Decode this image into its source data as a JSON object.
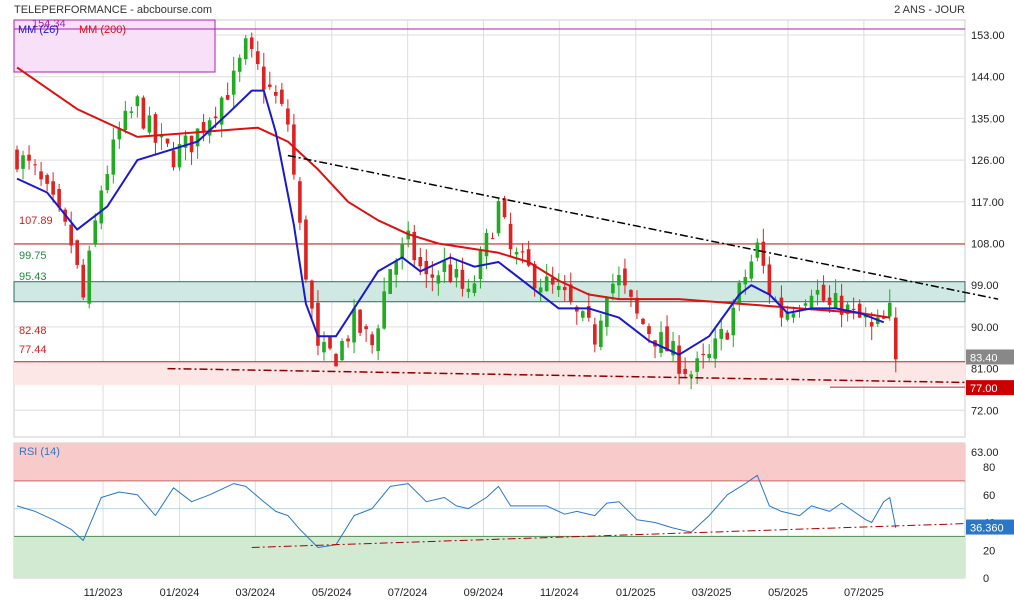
{
  "header": {
    "left_title": "TELEPERFORMANCE - abcbourse.com",
    "right_title": "2 ANS - JOUR"
  },
  "legend": {
    "mm26_label": "MM (26)",
    "mm200_label": "MM (200)",
    "rsi_label": "RSI (14)"
  },
  "colors": {
    "up": "#22aa22",
    "down": "#dd2222",
    "mm26": "#1a1acc",
    "mm200": "#dd1111",
    "grid": "#dddddd",
    "zone_green": "#cfe9e2",
    "zone_pink": "#fde6e6",
    "rsi_high": "#f9caca",
    "rsi_low": "#d2e9d2",
    "last_price_bg": "#888888",
    "target_bg": "#cc0000",
    "rsi_value_bg": "#2a77c9"
  },
  "chart_data": [
    {
      "type": "candlestick",
      "title": "TELEPERFORMANCE",
      "y_axis_side": "right",
      "ylim": [
        57,
        155
      ],
      "y_ticks": [
        63,
        72,
        81,
        90,
        99,
        108,
        117,
        126,
        135,
        144,
        153
      ],
      "y_tick_labels": [
        "63.00",
        "72.00",
        "81.00",
        "90.00",
        "99.00",
        "108.00",
        "117.00",
        "126.00",
        "135.00",
        "144.00",
        "153.00"
      ],
      "x_labels": [
        "11/2023",
        "01/2024",
        "03/2024",
        "05/2024",
        "07/2024",
        "09/2024",
        "11/2024",
        "01/2025",
        "03/2025",
        "05/2025",
        "07/2025"
      ],
      "last_price": 83.4,
      "last_price_label": "83.40",
      "target_price": 77.0,
      "target_label": "77.00",
      "horizontal_levels": [
        {
          "value": 107.89,
          "label": "107.89"
        },
        {
          "value": 99.75,
          "label": "99.75"
        },
        {
          "value": 95.43,
          "label": "95.43"
        },
        {
          "value": 82.48,
          "label": "82.48"
        },
        {
          "value": 77.44,
          "label": "77.44"
        }
      ],
      "box_level_label": "154.34",
      "price_path": [
        [
          0,
          127
        ],
        [
          3,
          123
        ],
        [
          6,
          116
        ],
        [
          9,
          108
        ],
        [
          11,
          96
        ],
        [
          14,
          120
        ],
        [
          17,
          132
        ],
        [
          20,
          138
        ],
        [
          23,
          130
        ],
        [
          26,
          127
        ],
        [
          29,
          130
        ],
        [
          32,
          136
        ],
        [
          36,
          143
        ],
        [
          38,
          150
        ],
        [
          41,
          143
        ],
        [
          43,
          139
        ],
        [
          45,
          134
        ],
        [
          47,
          111
        ],
        [
          50,
          84
        ],
        [
          53,
          84
        ],
        [
          56,
          91
        ],
        [
          59,
          86
        ],
        [
          62,
          103
        ],
        [
          65,
          108
        ],
        [
          68,
          100
        ],
        [
          71,
          103
        ],
        [
          73,
          100
        ],
        [
          75,
          96
        ],
        [
          78,
          108
        ],
        [
          80,
          116
        ],
        [
          82,
          106
        ],
        [
          85,
          102
        ],
        [
          88,
          99
        ],
        [
          91,
          96
        ],
        [
          93,
          92
        ],
        [
          96,
          88
        ],
        [
          98,
          99
        ],
        [
          100,
          100
        ],
        [
          103,
          92
        ],
        [
          106,
          88
        ],
        [
          109,
          84
        ],
        [
          112,
          80
        ],
        [
          115,
          83
        ],
        [
          118,
          90
        ],
        [
          121,
          101
        ],
        [
          123,
          107
        ],
        [
          125,
          98
        ],
        [
          127,
          93
        ],
        [
          130,
          96
        ],
        [
          132,
          99
        ],
        [
          135,
          94
        ],
        [
          137,
          95
        ],
        [
          139,
          92
        ],
        [
          141,
          91
        ],
        [
          142,
          89
        ],
        [
          144,
          91
        ],
        [
          145,
          93
        ],
        [
          146,
          83
        ]
      ],
      "series": [
        {
          "name": "MM (26)",
          "values": [
            [
              0,
              122
            ],
            [
              5,
              119
            ],
            [
              10,
              111
            ],
            [
              15,
              116
            ],
            [
              20,
              126
            ],
            [
              25,
              128
            ],
            [
              30,
              130
            ],
            [
              35,
              136
            ],
            [
              39,
              141
            ],
            [
              41,
              141
            ],
            [
              43,
              132
            ],
            [
              46,
              112
            ],
            [
              48,
              95
            ],
            [
              50,
              88
            ],
            [
              53,
              88
            ],
            [
              56,
              94
            ],
            [
              60,
              102
            ],
            [
              64,
              105
            ],
            [
              67,
              102
            ],
            [
              72,
              105
            ],
            [
              76,
              103
            ],
            [
              80,
              104
            ],
            [
              85,
              99
            ],
            [
              90,
              94
            ],
            [
              95,
              94
            ],
            [
              100,
              92
            ],
            [
              105,
              87
            ],
            [
              110,
              84
            ],
            [
              115,
              88
            ],
            [
              120,
              97
            ],
            [
              122,
              99
            ],
            [
              125,
              97
            ],
            [
              128,
              93
            ],
            [
              132,
              94
            ],
            [
              136,
              94
            ],
            [
              140,
              93
            ],
            [
              144,
              91
            ]
          ]
        },
        {
          "name": "MM (200)",
          "values": [
            [
              0,
              146
            ],
            [
              10,
              137
            ],
            [
              20,
              131
            ],
            [
              30,
              132
            ],
            [
              40,
              133
            ],
            [
              45,
              130
            ],
            [
              50,
              124
            ],
            [
              55,
              117
            ],
            [
              60,
              113
            ],
            [
              65,
              110
            ],
            [
              70,
              108
            ],
            [
              80,
              106
            ],
            [
              85,
              104
            ],
            [
              90,
              100
            ],
            [
              95,
              97
            ],
            [
              100,
              96
            ],
            [
              110,
              96
            ],
            [
              120,
              95
            ],
            [
              130,
              94
            ],
            [
              140,
              93
            ],
            [
              145,
              92
            ]
          ]
        }
      ],
      "trendlines": [
        {
          "style": "dash-dot",
          "color": "#000000",
          "from": [
            45,
            127
          ],
          "to": [
            163,
            96
          ]
        },
        {
          "style": "dash-dot",
          "color": "#880000",
          "from": [
            25,
            81
          ],
          "to": [
            158,
            78
          ]
        }
      ]
    },
    {
      "type": "line",
      "title": "RSI (14)",
      "ylim": [
        0,
        100
      ],
      "y_ticks": [
        0,
        20,
        40,
        60,
        80
      ],
      "y_tick_labels": [
        "0",
        "20",
        "40",
        "60",
        "80"
      ],
      "overbought": 70,
      "oversold": 30,
      "last_value": 36.36,
      "last_value_label": "36.360",
      "series": [
        {
          "name": "RSI (14)",
          "values": [
            [
              0,
              52
            ],
            [
              3,
              48
            ],
            [
              6,
              42
            ],
            [
              9,
              35
            ],
            [
              11,
              27
            ],
            [
              14,
              58
            ],
            [
              17,
              62
            ],
            [
              20,
              60
            ],
            [
              23,
              45
            ],
            [
              26,
              65
            ],
            [
              29,
              55
            ],
            [
              32,
              60
            ],
            [
              36,
              68
            ],
            [
              38,
              66
            ],
            [
              41,
              55
            ],
            [
              43,
              48
            ],
            [
              45,
              45
            ],
            [
              47,
              35
            ],
            [
              50,
              22
            ],
            [
              53,
              24
            ],
            [
              56,
              45
            ],
            [
              59,
              50
            ],
            [
              62,
              66
            ],
            [
              65,
              68
            ],
            [
              68,
              55
            ],
            [
              71,
              58
            ],
            [
              73,
              52
            ],
            [
              75,
              50
            ],
            [
              78,
              58
            ],
            [
              80,
              66
            ],
            [
              82,
              52
            ],
            [
              85,
              52
            ],
            [
              88,
              52
            ],
            [
              91,
              46
            ],
            [
              93,
              48
            ],
            [
              96,
              45
            ],
            [
              98,
              54
            ],
            [
              100,
              55
            ],
            [
              103,
              42
            ],
            [
              106,
              40
            ],
            [
              109,
              36
            ],
            [
              112,
              33
            ],
            [
              115,
              45
            ],
            [
              118,
              60
            ],
            [
              121,
              68
            ],
            [
              123,
              74
            ],
            [
              125,
              52
            ],
            [
              127,
              48
            ],
            [
              130,
              45
            ],
            [
              132,
              52
            ],
            [
              135,
              48
            ],
            [
              137,
              54
            ],
            [
              139,
              48
            ],
            [
              141,
              42
            ],
            [
              142,
              40
            ],
            [
              144,
              55
            ],
            [
              145,
              58
            ],
            [
              146,
              36
            ]
          ]
        }
      ],
      "trendlines": [
        {
          "style": "dash-dot",
          "color": "#aa0000",
          "from": [
            39,
            22
          ],
          "to": [
            163,
            40
          ]
        }
      ]
    }
  ]
}
